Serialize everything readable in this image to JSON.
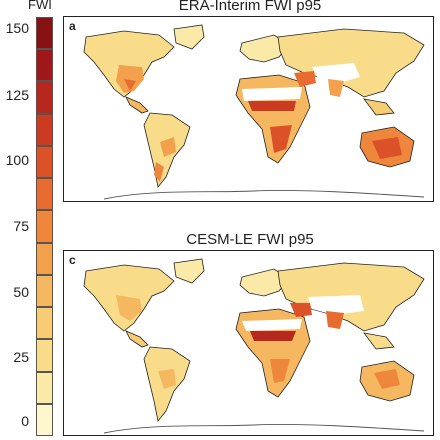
{
  "colorbar": {
    "title": "FWI",
    "ticks": [
      "150",
      "125",
      "100",
      "75",
      "50",
      "25",
      "0"
    ],
    "colors": [
      "#fdf6cf",
      "#fbe9a8",
      "#f9dc8a",
      "#f7cc72",
      "#f5b860",
      "#f2a04c",
      "#ee873c",
      "#e86b30",
      "#dc5228",
      "#cb3b22",
      "#b6271d",
      "#9e1819",
      "#861214"
    ]
  },
  "panels": [
    {
      "label": "a",
      "title": "ERA-Interim FWI p95"
    },
    {
      "label": "c",
      "title": "CESM-LE FWI p95"
    }
  ]
}
